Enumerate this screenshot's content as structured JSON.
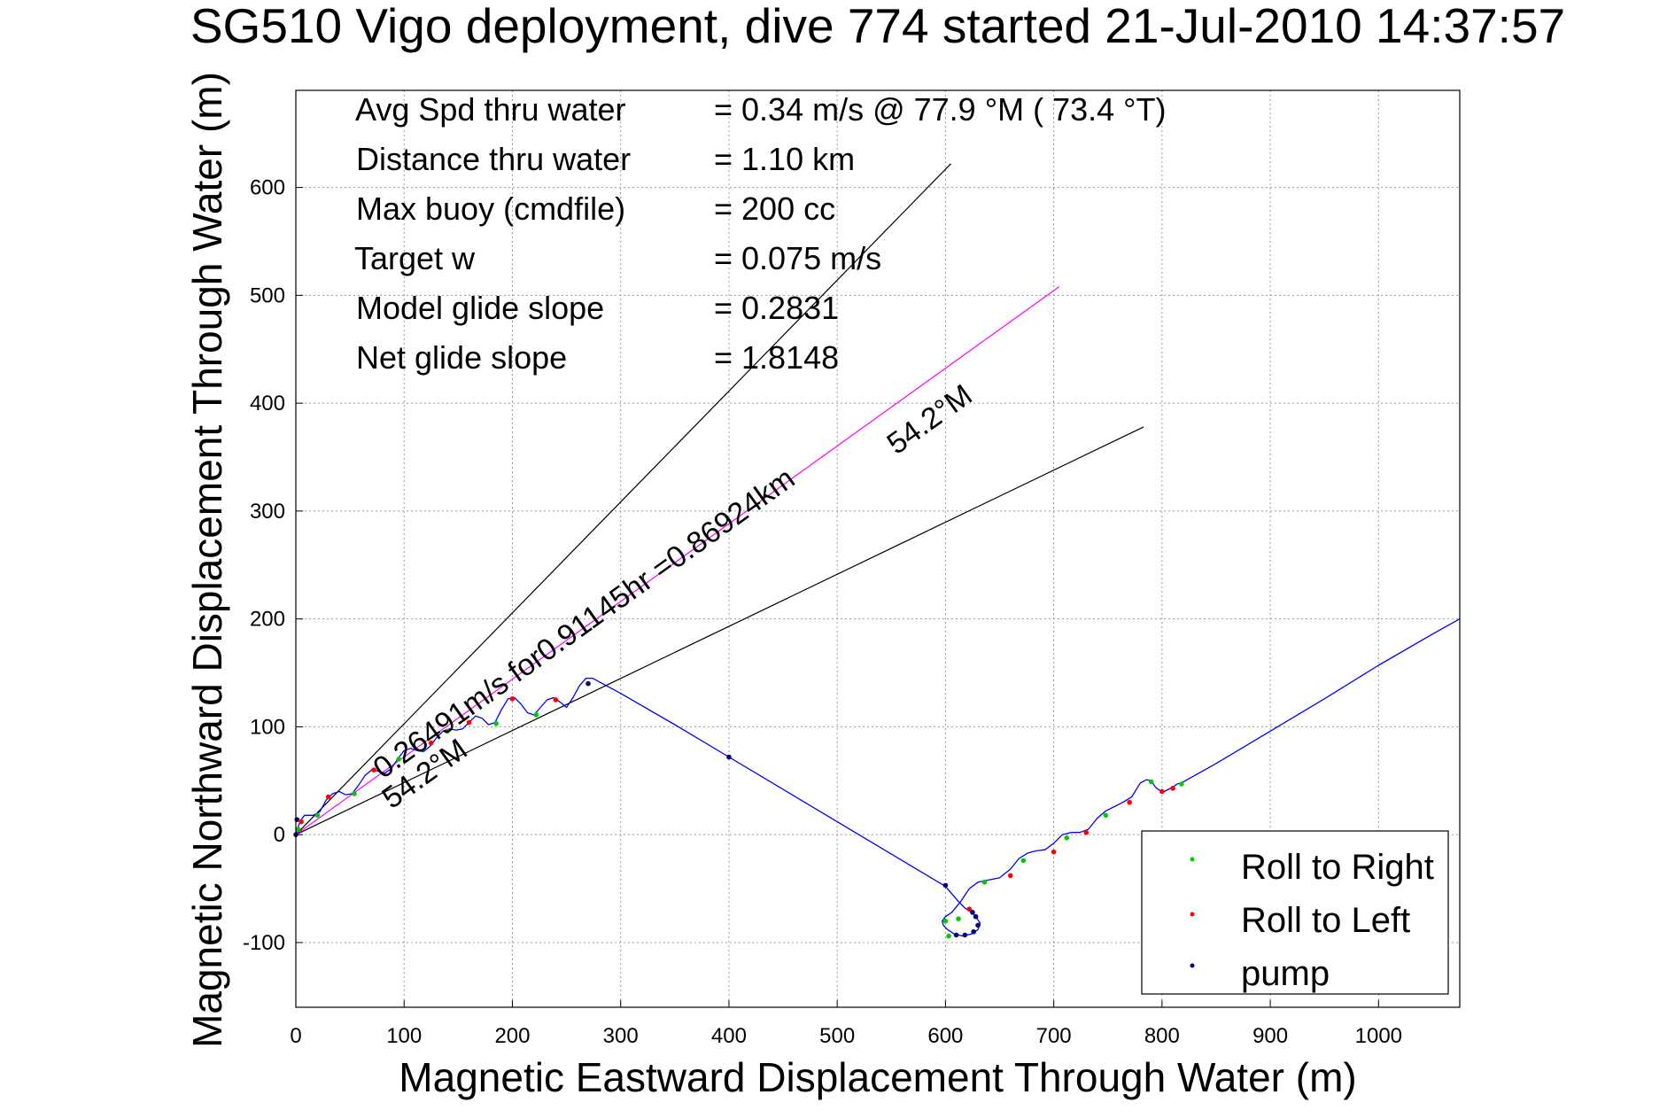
{
  "chart_data": {
    "type": "line",
    "title": "SG510 Vigo deployment, dive 774 started 21-Jul-2010 14:37:57",
    "xlabel": "Magnetic Eastward Displacement Through Water (m)",
    "ylabel": "Magnetic Northward Displacement Through Water (m)",
    "xlim": [
      0,
      1075
    ],
    "ylim": [
      -160,
      690
    ],
    "xticks": [
      0,
      100,
      200,
      300,
      400,
      500,
      600,
      700,
      800,
      900,
      1000
    ],
    "yticks": [
      -100,
      0,
      100,
      200,
      300,
      400,
      500,
      600
    ],
    "grid": true,
    "legend_position": "bottom-right",
    "legend": [
      {
        "label": "Roll to Right",
        "color": "#00cc00"
      },
      {
        "label": "Roll to Left",
        "color": "#ff0000"
      },
      {
        "label": "pump",
        "color": "#000080"
      }
    ],
    "stats": [
      {
        "label": "Avg Spd thru water",
        "value": "=  0.34 m/s @  77.9 °M ( 73.4 °T)"
      },
      {
        "label": "Distance thru water",
        "value": "=  1.10 km"
      },
      {
        "label": "Max buoy (cmdfile)",
        "value": "= 200 cc"
      },
      {
        "label": "Target w",
        "value": "= 0.075 m/s"
      },
      {
        "label": "Model glide slope",
        "value": "= 0.2831"
      },
      {
        "label": "Net glide slope",
        "value": "= 1.8148"
      }
    ],
    "annotations": {
      "current_text": "0.26491m/s for0.91145hr =0.86924km",
      "heading_near": "54.2°M",
      "heading_far": "54.2°M"
    },
    "reference_lines": [
      {
        "x": [
          0,
          605
        ],
        "y": [
          0,
          622
        ],
        "color": "#000000"
      },
      {
        "x": [
          0,
          783
        ],
        "y": [
          0,
          378
        ],
        "color": "#000000"
      },
      {
        "x": [
          0,
          705
        ],
        "y": [
          0,
          508
        ],
        "color": "#ff00ff"
      }
    ],
    "series": [
      {
        "color": "#0000ff",
        "x": [
          0,
          2,
          5,
          8,
          12,
          16,
          22,
          28,
          34,
          40,
          46,
          52,
          58,
          64,
          70,
          76,
          82,
          88,
          94,
          100,
          106,
          112,
          118,
          124,
          130,
          136,
          142,
          148,
          154,
          160,
          166,
          172,
          178,
          184,
          190,
          196,
          202,
          208,
          214,
          220,
          226,
          232,
          238,
          244,
          250,
          256,
          262,
          268,
          274,
          300,
          350,
          400,
          450,
          500,
          550,
          600,
          606,
          612,
          618,
          624,
          628,
          632,
          630,
          624,
          616,
          608,
          602,
          598,
          597,
          600,
          606,
          614,
          622,
          630,
          640,
          650,
          660,
          668,
          676,
          684,
          692,
          700,
          708,
          716,
          724,
          732,
          740,
          748,
          756,
          764,
          772,
          780,
          786,
          790,
          794,
          798,
          802,
          806,
          810,
          814,
          818,
          850,
          900,
          950,
          1000,
          1050,
          1075
        ],
        "y": [
          0,
          7,
          14,
          18,
          18,
          18,
          21,
          32,
          38,
          40,
          37,
          38,
          46,
          55,
          60,
          59,
          57,
          61,
          70,
          78,
          80,
          78,
          77,
          82,
          90,
          96,
          98,
          97,
          98,
          104,
          110,
          108,
          102,
          104,
          116,
          126,
          127,
          121,
          113,
          111,
          118,
          125,
          127,
          123,
          118,
          127,
          138,
          145,
          145,
          131,
          102,
          72,
          42,
          12,
          -18,
          -48,
          -55,
          -62,
          -68,
          -72,
          -76,
          -82,
          -88,
          -92,
          -94,
          -92,
          -88,
          -84,
          -80,
          -76,
          -72,
          -62,
          -50,
          -44,
          -42,
          -40,
          -32,
          -22,
          -17,
          -15,
          -14,
          -8,
          0,
          2,
          2,
          5,
          15,
          22,
          26,
          30,
          35,
          48,
          51,
          50,
          44,
          41,
          40,
          42,
          44,
          47,
          48,
          66,
          96,
          126,
          157,
          186,
          200
        ]
      }
    ],
    "roll_right_points": [
      [
        2,
        5
      ],
      [
        20,
        18
      ],
      [
        54,
        38
      ],
      [
        95,
        70
      ],
      [
        140,
        96
      ],
      [
        185,
        103
      ],
      [
        222,
        111
      ],
      [
        600,
        -80
      ],
      [
        603,
        -94
      ],
      [
        612,
        -78
      ],
      [
        636,
        -44
      ],
      [
        672,
        -24
      ],
      [
        712,
        -3
      ],
      [
        748,
        18
      ],
      [
        790,
        49
      ],
      [
        818,
        47
      ]
    ],
    "roll_left_points": [
      [
        5,
        12
      ],
      [
        30,
        35
      ],
      [
        72,
        60
      ],
      [
        125,
        85
      ],
      [
        160,
        104
      ],
      [
        200,
        126
      ],
      [
        240,
        125
      ],
      [
        622,
        -69
      ],
      [
        660,
        -38
      ],
      [
        700,
        -16
      ],
      [
        730,
        2
      ],
      [
        770,
        30
      ],
      [
        800,
        40
      ],
      [
        810,
        43
      ]
    ],
    "pump_points": [
      [
        0,
        0
      ],
      [
        1,
        14
      ],
      [
        270,
        140
      ],
      [
        400,
        72
      ],
      [
        600,
        -47
      ],
      [
        625,
        -72
      ],
      [
        628,
        -76
      ],
      [
        630,
        -84
      ],
      [
        626,
        -90
      ],
      [
        618,
        -93
      ],
      [
        610,
        -93
      ]
    ]
  }
}
